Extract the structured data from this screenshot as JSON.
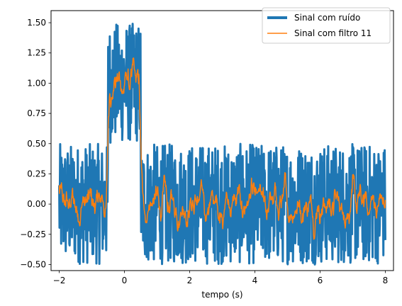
{
  "chart_data": {
    "type": "line",
    "title": "",
    "xlabel": "tempo (s)",
    "ylabel": "",
    "xlim": [
      -2.25,
      8.25
    ],
    "ylim": [
      -0.55,
      1.6
    ],
    "xticks": [
      -2,
      0,
      2,
      4,
      6,
      8
    ],
    "xtick_labels": [
      "−2",
      "0",
      "2",
      "4",
      "6",
      "8"
    ],
    "yticks": [
      -0.5,
      -0.25,
      0.0,
      0.25,
      0.5,
      0.75,
      1.0,
      1.25,
      1.5
    ],
    "ytick_labels": [
      "−0.50",
      "−0.25",
      "0.00",
      "0.25",
      "0.50",
      "0.75",
      "1.00",
      "1.25",
      "1.50"
    ],
    "grid": false,
    "legend_position": "top-right",
    "series": [
      {
        "name": "Sinal com ruído",
        "color": "#1f77b4",
        "line_width": "thick",
        "x_start": -2,
        "x_end": 8,
        "points": 1000,
        "pulse": {
          "start": -0.5,
          "end": 0.5,
          "level": 1.0
        },
        "noise_range": [
          -0.5,
          0.5
        ]
      },
      {
        "name": "Sinal com filtro 11",
        "color": "#ff7f0e",
        "line_width": "thin",
        "moving_average_window": 11,
        "approx_range_outside_pulse": [
          -0.2,
          0.3
        ],
        "approx_range_inside_pulse": [
          0.6,
          1.1
        ]
      }
    ]
  }
}
